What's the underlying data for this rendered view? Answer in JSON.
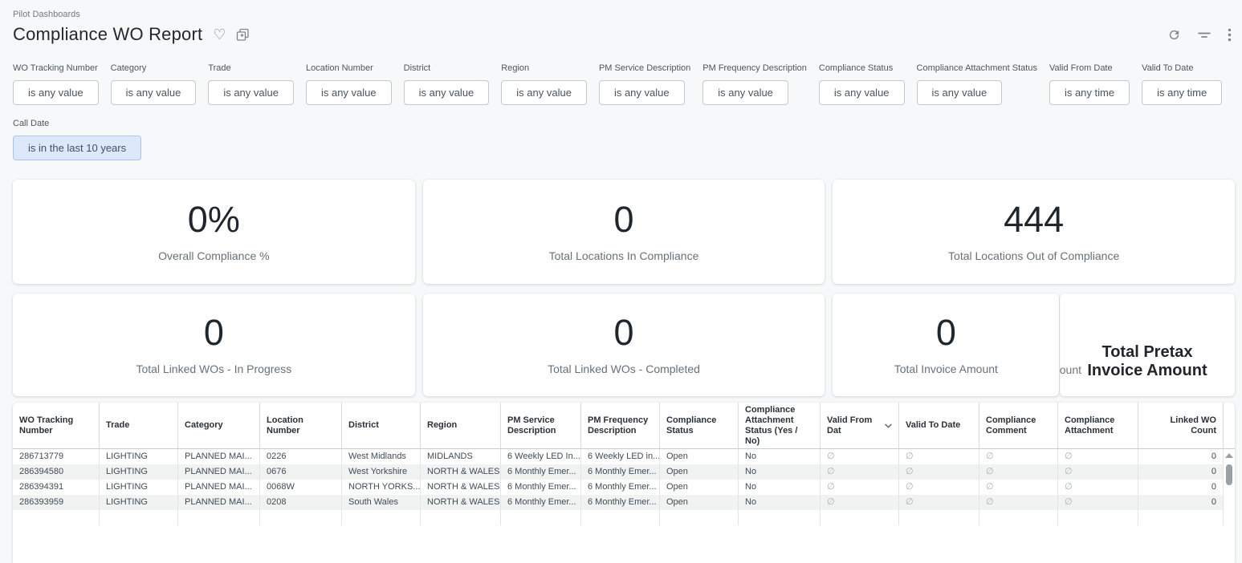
{
  "header": {
    "breadcrumb": "Pilot Dashboards",
    "title": "Compliance WO Report",
    "icons": {
      "favorite": "heart-outline",
      "favorite_glyph": "♡",
      "duplicate": "copy-plus",
      "refresh": "refresh-arrow",
      "filter": "filter-lines",
      "more": "kebab-vertical"
    }
  },
  "filters": {
    "groups": [
      {
        "label": "WO Tracking Number",
        "value": "is any value"
      },
      {
        "label": "Category",
        "value": "is any value"
      },
      {
        "label": "Trade",
        "value": "is any value"
      },
      {
        "label": "Location Number",
        "value": "is any value"
      },
      {
        "label": "District",
        "value": "is any value"
      },
      {
        "label": "Region",
        "value": "is any value"
      },
      {
        "label": "PM Service Description",
        "value": "is any value"
      },
      {
        "label": "PM Frequency Description",
        "value": "is any value"
      },
      {
        "label": "Compliance Status",
        "value": "is any value"
      },
      {
        "label": "Compliance Attachment Status",
        "value": "is any value"
      },
      {
        "label": "Valid From Date",
        "value": "is any time"
      },
      {
        "label": "Valid To Date",
        "value": "is any time"
      }
    ],
    "call_date": {
      "label": "Call Date",
      "value": "is in the last 10 years",
      "active": true
    }
  },
  "kpis": {
    "row1": [
      {
        "value": "0%",
        "label": "Overall Compliance %"
      },
      {
        "value": "0",
        "label": "Total Locations In Compliance"
      },
      {
        "value": "444",
        "label": "Total Locations Out of Compliance"
      }
    ],
    "row2": [
      {
        "value": "0",
        "label": "Total Linked WOs - In Progress"
      },
      {
        "value": "0",
        "label": "Total Linked WOs - Completed"
      }
    ],
    "invoice": {
      "value": "0",
      "label": "Total Invoice Amount"
    },
    "pretax": {
      "title": "Total Pretax Invoice Amount",
      "clipped_text": "nount"
    }
  },
  "table": {
    "columns": [
      "WO Tracking Number",
      "Trade",
      "Category",
      "Location Number",
      "District",
      "Region",
      "PM Service Description",
      "PM Frequency Description",
      "Compliance Status",
      "Compliance Attachment Status (Yes / No)",
      "Valid From Dat",
      "Valid To Date",
      "Compliance Comment",
      "Compliance Attachment",
      "Linked WO Count"
    ],
    "sorted_column": "Valid From Dat",
    "sort_direction": "desc",
    "empty_glyph": "∅",
    "rows": [
      [
        "286713779",
        "LIGHTING",
        "PLANNED MAI...",
        "0226",
        "West Midlands",
        "MIDLANDS",
        "6 Weekly LED In...",
        "6 Weekly LED in...",
        "Open",
        "No",
        "∅",
        "∅",
        "∅",
        "∅",
        "0"
      ],
      [
        "286394580",
        "LIGHTING",
        "PLANNED MAI...",
        "0676",
        "West Yorkshire",
        "NORTH & WALES",
        "6 Monthly Emer...",
        "6 Monthly Emer...",
        "Open",
        "No",
        "∅",
        "∅",
        "∅",
        "∅",
        "0"
      ],
      [
        "286394391",
        "LIGHTING",
        "PLANNED MAI...",
        "0068W",
        "NORTH YORKS...",
        "NORTH & WALES",
        "6 Monthly Emer...",
        "6 Monthly Emer...",
        "Open",
        "No",
        "∅",
        "∅",
        "∅",
        "∅",
        "0"
      ],
      [
        "286393959",
        "LIGHTING",
        "PLANNED MAI...",
        "0208",
        "South Wales",
        "NORTH & WALES",
        "6 Monthly Emer...",
        "6 Monthly Emer...",
        "Open",
        "No",
        "∅",
        "∅",
        "∅",
        "∅",
        "0"
      ]
    ]
  }
}
